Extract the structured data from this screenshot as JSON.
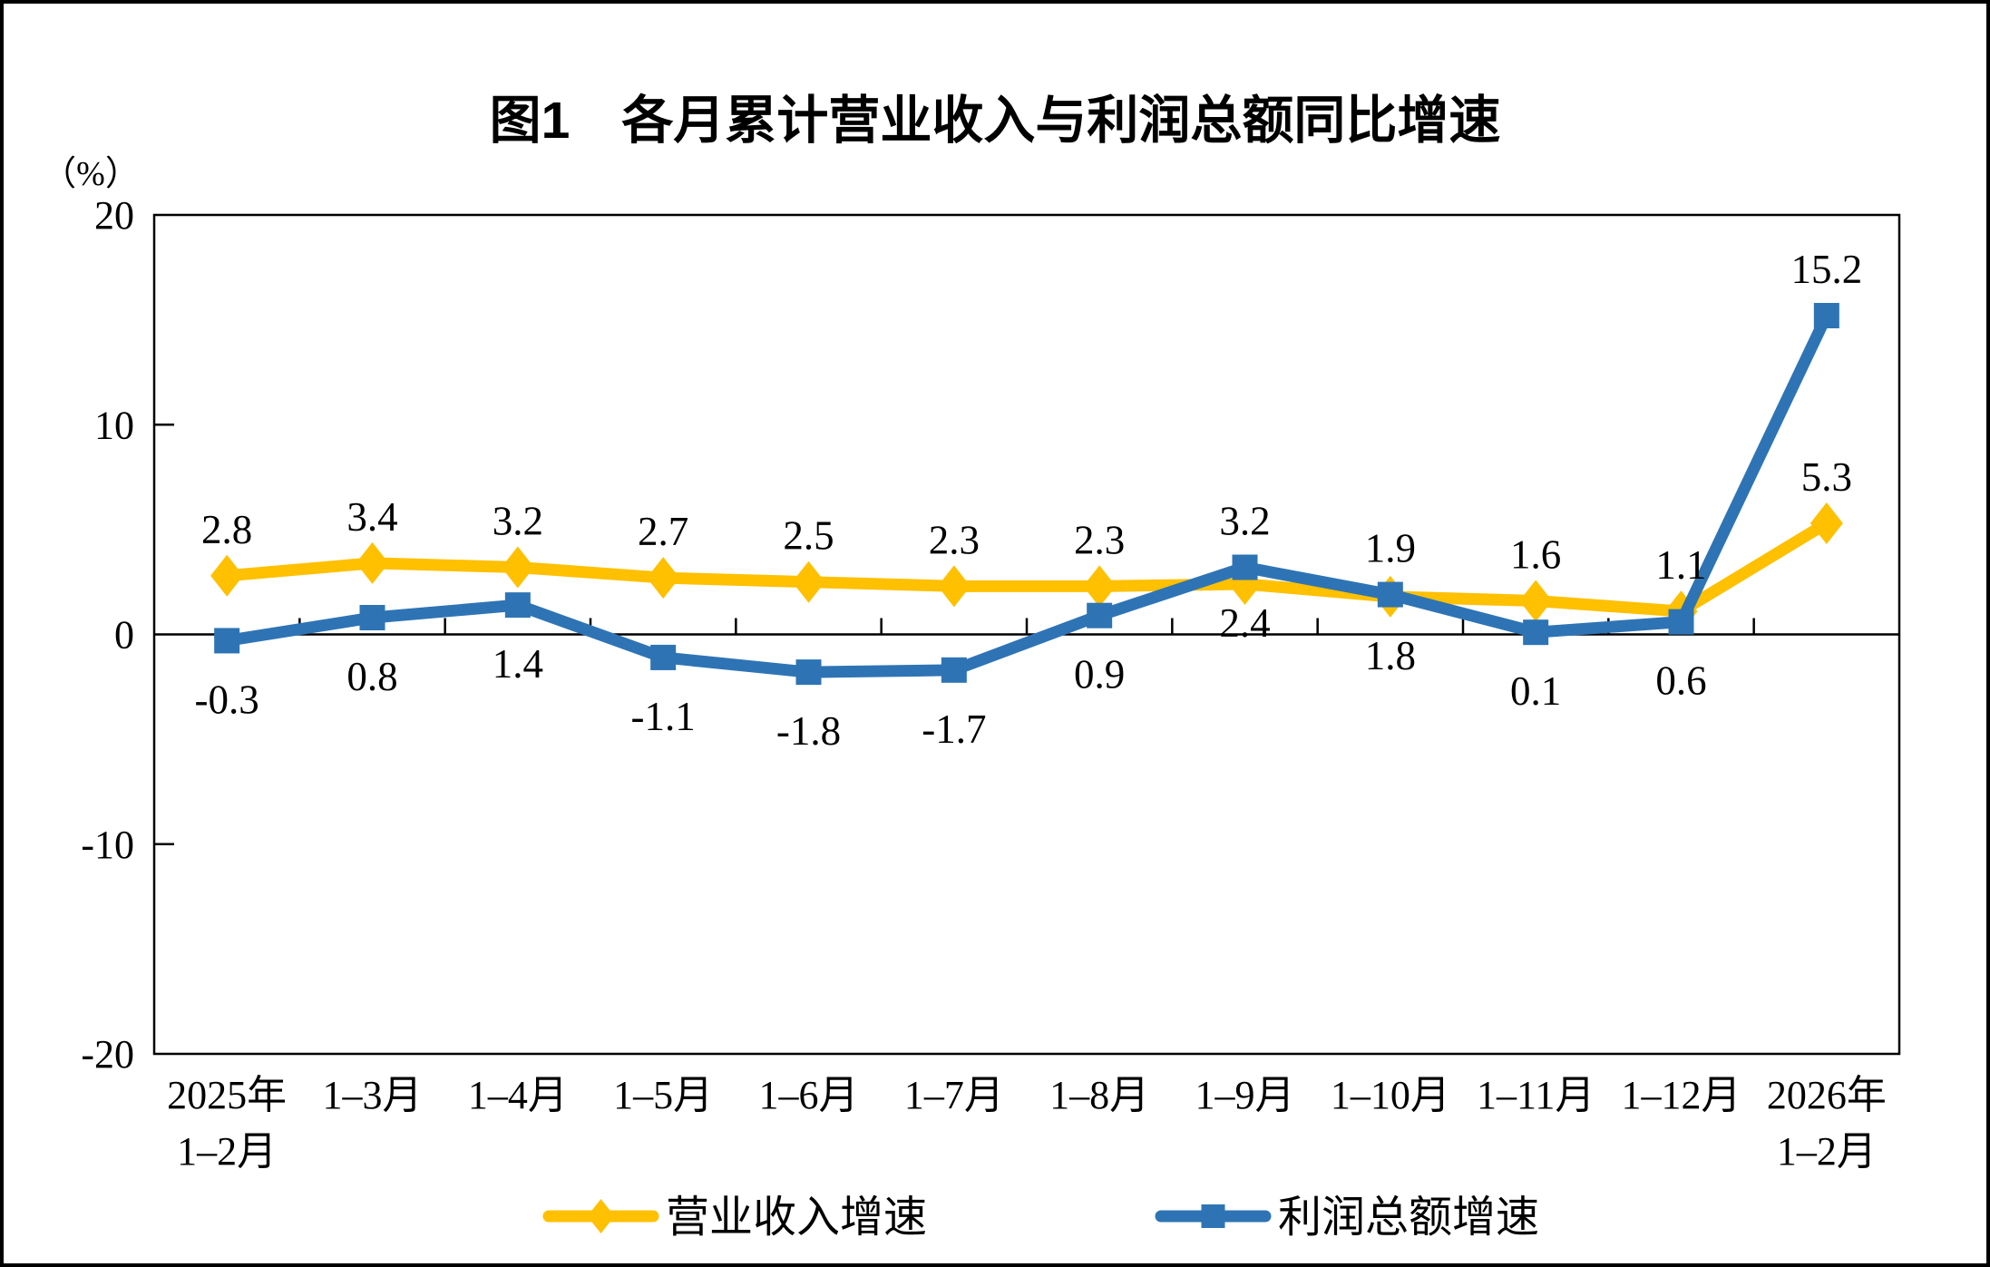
{
  "chart_data": {
    "type": "line",
    "title": "图1　各月累计营业收入与利润总额同比增速",
    "unit_label": "（%）",
    "ylim": [
      -20,
      20
    ],
    "y_ticks": [
      20,
      10,
      0,
      -10,
      -20
    ],
    "grid": false,
    "legend_position": "bottom",
    "categories": [
      [
        "2025年",
        "1–2月"
      ],
      [
        "1–3月"
      ],
      [
        "1–4月"
      ],
      [
        "1–5月"
      ],
      [
        "1–6月"
      ],
      [
        "1–7月"
      ],
      [
        "1–8月"
      ],
      [
        "1–9月"
      ],
      [
        "1–10月"
      ],
      [
        "1–11月"
      ],
      [
        "1–12月"
      ],
      [
        "2026年",
        "1–2月"
      ]
    ],
    "series": [
      {
        "key": "revenue",
        "name": "营业收入增速",
        "color": "#FFC000",
        "marker": "diamond",
        "values": [
          2.8,
          3.4,
          3.2,
          2.7,
          2.5,
          2.3,
          2.3,
          2.4,
          1.8,
          1.6,
          1.1,
          5.3
        ],
        "label_positions": [
          "above",
          "above",
          "above",
          "above",
          "above",
          "above",
          "above",
          "below-near",
          "below",
          "above",
          "above",
          "above"
        ]
      },
      {
        "key": "profit",
        "name": "利润总额增速",
        "color": "#2E74B5",
        "marker": "square",
        "values": [
          -0.3,
          0.8,
          1.4,
          -1.1,
          -1.8,
          -1.7,
          0.9,
          3.2,
          1.9,
          0.1,
          0.6,
          15.2
        ],
        "label_positions": [
          "below",
          "below",
          "below",
          "below",
          "below",
          "below",
          "below",
          "above",
          "above",
          "below",
          "below",
          "above"
        ]
      }
    ],
    "axis_color": "#000000",
    "frame_color": "#000000"
  }
}
